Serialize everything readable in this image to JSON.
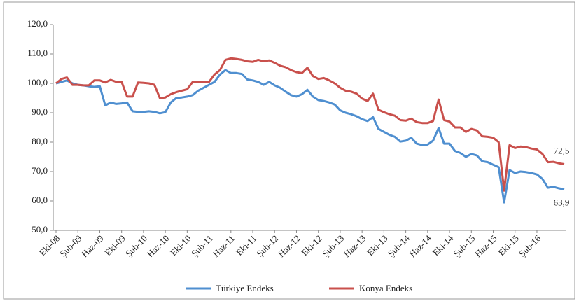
{
  "chart_data": {
    "type": "line",
    "categories": [
      "Eki-08",
      null,
      null,
      null,
      "Şub-09",
      null,
      null,
      null,
      "Haz-09",
      null,
      null,
      null,
      "Eki-09",
      null,
      null,
      null,
      "Şub-10",
      null,
      null,
      null,
      "Haz-10",
      null,
      null,
      null,
      "Eki-10",
      null,
      null,
      null,
      "Şub-11",
      null,
      null,
      null,
      "Haz-11",
      null,
      null,
      null,
      "Eki-11",
      null,
      null,
      null,
      "Şub-12",
      null,
      null,
      null,
      "Haz-12",
      null,
      null,
      null,
      "Eki-12",
      null,
      null,
      null,
      "Şub-13",
      null,
      null,
      null,
      "Haz-13",
      null,
      null,
      null,
      "Eki-13",
      null,
      null,
      null,
      "Şub-14",
      null,
      null,
      null,
      "Haz-14",
      null,
      null,
      null,
      "Eki-14",
      null,
      null,
      null,
      "Şub-15",
      null,
      null,
      null,
      "Haz-15",
      null,
      null,
      null,
      "Eki-15",
      null,
      null,
      null,
      "Şub-16",
      null,
      null,
      null,
      null,
      null
    ],
    "series": [
      {
        "name": "Türkiye Endeks",
        "color": "#4f8fd0",
        "values": [
          100,
          100.5,
          101,
          100,
          99.5,
          99.3,
          99,
          98.8,
          99,
          92.5,
          93.5,
          93,
          93.2,
          93.5,
          90.5,
          90.3,
          90.3,
          90.5,
          90.3,
          89.8,
          90.2,
          93.5,
          95,
          95.2,
          95.5,
          96,
          97.5,
          98.5,
          99.5,
          100.5,
          103,
          104.5,
          103.5,
          103.5,
          103.2,
          101.3,
          101,
          100.5,
          99.5,
          100.5,
          99.3,
          98.5,
          97.2,
          96,
          95.5,
          96.3,
          97.8,
          95.5,
          94.3,
          94,
          93.5,
          92.8,
          90.8,
          90,
          89.5,
          88.8,
          87.8,
          87.2,
          88.5,
          84.5,
          83.5,
          82.5,
          81.8,
          80.2,
          80.5,
          81.5,
          79.5,
          79,
          79.2,
          80.5,
          84.8,
          79.5,
          79.5,
          77,
          76.3,
          75,
          76,
          75.5,
          73.5,
          73.2,
          72.3,
          71.5,
          59.5,
          70.5,
          69.5,
          70,
          69.8,
          69.5,
          69,
          67.5,
          64.5,
          64.8,
          64.3,
          63.9
        ],
        "value_labels": [
          null,
          null,
          null,
          null,
          null,
          null,
          null,
          null,
          null,
          null,
          null,
          null,
          null,
          null,
          null,
          null,
          null,
          null,
          null,
          null,
          null,
          null,
          null,
          null,
          null,
          null,
          null,
          null,
          null,
          null,
          null,
          null,
          null,
          null,
          null,
          null,
          null,
          null,
          null,
          null,
          null,
          null,
          null,
          null,
          null,
          null,
          null,
          null,
          null,
          null,
          null,
          null,
          null,
          null,
          null,
          null,
          null,
          null,
          null,
          null,
          null,
          null,
          null,
          null,
          null,
          null,
          null,
          null,
          null,
          null,
          null,
          null,
          null,
          null,
          null,
          null,
          null,
          null,
          null,
          null,
          null,
          null,
          null,
          null,
          null,
          null,
          null,
          null,
          null,
          null,
          null,
          null,
          null,
          "63,9"
        ]
      },
      {
        "name": "Konya Endeks",
        "color": "#c9504c",
        "values": [
          100,
          101.5,
          102,
          99.5,
          99.5,
          99.3,
          99.3,
          101,
          101,
          100.3,
          101.2,
          100.5,
          100.5,
          95.5,
          95.5,
          100.3,
          100.2,
          100,
          99.5,
          95,
          95.2,
          96.3,
          97,
          97.5,
          98,
          100.5,
          100.5,
          100.5,
          100.5,
          103,
          104.5,
          108,
          108.5,
          108.3,
          108,
          107.5,
          107.3,
          108,
          107.5,
          107.8,
          107,
          106,
          105.5,
          104.5,
          103.8,
          103.5,
          105.3,
          102.5,
          101.5,
          101.8,
          101,
          100,
          98.5,
          97.5,
          97.2,
          96.5,
          94.8,
          94,
          96.5,
          91,
          90.2,
          89.5,
          89,
          87.5,
          87.3,
          88,
          86.8,
          86.5,
          86.5,
          87.2,
          94.5,
          87.5,
          87,
          85,
          85,
          83.5,
          84.5,
          84,
          82,
          81.8,
          81.5,
          80,
          63.5,
          79,
          78,
          78.5,
          78.3,
          77.8,
          77.5,
          76,
          73.2,
          73.3,
          72.8,
          72.5
        ],
        "value_labels": [
          null,
          null,
          null,
          null,
          null,
          null,
          null,
          null,
          null,
          null,
          null,
          null,
          null,
          null,
          null,
          null,
          null,
          null,
          null,
          null,
          null,
          null,
          null,
          null,
          null,
          null,
          null,
          null,
          null,
          null,
          null,
          null,
          null,
          null,
          null,
          null,
          null,
          null,
          null,
          null,
          null,
          null,
          null,
          null,
          null,
          null,
          null,
          null,
          null,
          null,
          null,
          null,
          null,
          null,
          null,
          null,
          null,
          null,
          null,
          null,
          null,
          null,
          null,
          null,
          null,
          null,
          null,
          null,
          null,
          null,
          null,
          null,
          null,
          null,
          null,
          null,
          null,
          null,
          null,
          null,
          null,
          null,
          null,
          null,
          null,
          null,
          null,
          null,
          null,
          null,
          null,
          null,
          null,
          "72,5"
        ]
      }
    ],
    "ylim": [
      50,
      120
    ],
    "yticks": [
      {
        "value": 50,
        "label": "50,0"
      },
      {
        "value": 60,
        "label": "60,0"
      },
      {
        "value": 70,
        "label": "70,0"
      },
      {
        "value": 80,
        "label": "80,0"
      },
      {
        "value": 90,
        "label": "90,0"
      },
      {
        "value": 100,
        "label": "100,0"
      },
      {
        "value": 110,
        "label": "110,0"
      },
      {
        "value": 120,
        "label": "120,0"
      }
    ],
    "grid": false,
    "legend": "bottom"
  }
}
